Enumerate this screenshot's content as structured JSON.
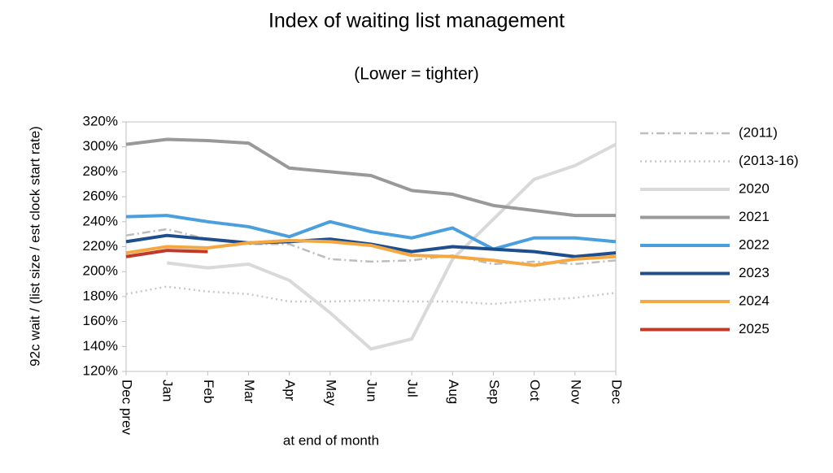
{
  "chart_data": {
    "type": "line",
    "title": "Index of waiting list management",
    "subtitle": "(Lower = tighter)",
    "y_label": "92c wait / (list size / est clock start rate)",
    "x_label": "at end of month",
    "categories": [
      "Dec prev",
      "Jan",
      "Feb",
      "Mar",
      "Apr",
      "May",
      "Jun",
      "Jul",
      "Aug",
      "Sep",
      "Oct",
      "Nov",
      "Dec"
    ],
    "ylim": [
      120,
      320
    ],
    "yticks": [
      {
        "value": 120,
        "label": "120%"
      },
      {
        "value": 140,
        "label": "140%"
      },
      {
        "value": 160,
        "label": "160%"
      },
      {
        "value": 180,
        "label": "180%"
      },
      {
        "value": 200,
        "label": "200%"
      },
      {
        "value": 220,
        "label": "220%"
      },
      {
        "value": 240,
        "label": "240%"
      },
      {
        "value": 260,
        "label": "260%"
      },
      {
        "value": 280,
        "label": "280%"
      },
      {
        "value": 300,
        "label": "300%"
      },
      {
        "value": 320,
        "label": "320%"
      }
    ],
    "grid": false,
    "legend": "right",
    "series": [
      {
        "name": "(2011)",
        "color": "#bdbdbd",
        "style": "dashdot",
        "values": [
          229,
          234,
          226,
          222,
          222,
          210,
          208,
          209,
          213,
          206,
          208,
          206,
          209
        ]
      },
      {
        "name": "(2013-16)",
        "color": "#c8c8c8",
        "style": "dot",
        "values": [
          182,
          188,
          184,
          182,
          176,
          176,
          177,
          176,
          176,
          174,
          177,
          179,
          183
        ]
      },
      {
        "name": "2020",
        "color": "#d9d9d9",
        "style": "solid",
        "values": [
          null,
          207,
          203,
          206,
          193,
          167,
          138,
          146,
          210,
          242,
          274,
          285,
          302
        ]
      },
      {
        "name": "2021",
        "color": "#999999",
        "style": "solid",
        "values": [
          302,
          306,
          305,
          303,
          283,
          280,
          277,
          265,
          262,
          253,
          249,
          245,
          245
        ]
      },
      {
        "name": "2022",
        "color": "#4a9fdc",
        "style": "solid",
        "values": [
          244,
          245,
          240,
          236,
          228,
          240,
          232,
          227,
          235,
          218,
          227,
          227,
          224
        ]
      },
      {
        "name": "2023",
        "color": "#1f4e8c",
        "style": "solid",
        "values": [
          224,
          229,
          226,
          223,
          224,
          226,
          222,
          216,
          220,
          218,
          216,
          212,
          215
        ]
      },
      {
        "name": "2024",
        "color": "#f5a742",
        "style": "solid",
        "values": [
          215,
          220,
          219,
          223,
          225,
          224,
          221,
          213,
          212,
          209,
          205,
          210,
          212
        ]
      },
      {
        "name": "2025",
        "color": "#c0392b",
        "style": "solid",
        "values": [
          212,
          217,
          216,
          null,
          null,
          null,
          null,
          null,
          null,
          null,
          null,
          null,
          null
        ]
      }
    ]
  }
}
